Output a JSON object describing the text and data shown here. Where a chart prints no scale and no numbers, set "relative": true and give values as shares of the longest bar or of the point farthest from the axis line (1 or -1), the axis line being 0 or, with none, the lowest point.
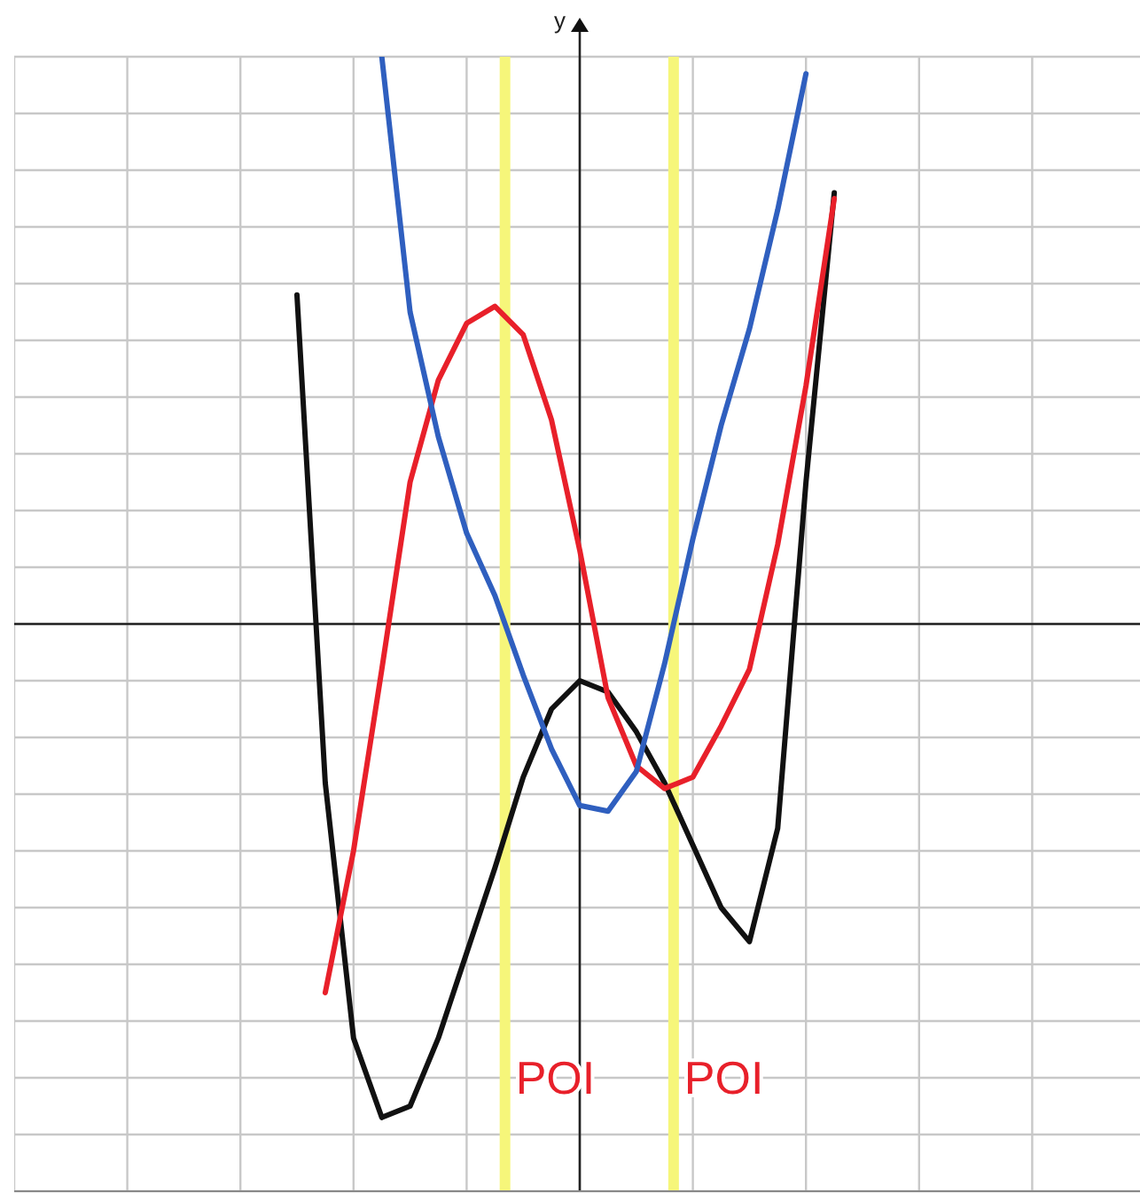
{
  "chart_data": {
    "type": "line",
    "ylabel": "y",
    "relative": true,
    "grid": true,
    "marker": "none",
    "line_style": "solid",
    "categories": [
      null,
      null,
      null,
      null,
      null,
      null,
      null,
      null,
      null,
      null,
      null,
      null,
      null,
      null,
      null,
      null,
      null,
      null,
      null,
      null,
      null,
      null,
      null,
      null,
      null,
      null,
      null,
      null,
      null,
      null,
      null,
      null,
      null,
      null,
      null,
      null,
      null,
      null,
      null,
      null,
      null
    ],
    "series": [
      {
        "color": "#111111",
        "values": [
          null,
          null,
          null,
          null,
          null,
          null,
          null,
          null,
          null,
          null,
          0.58,
          -0.28,
          -0.73,
          -0.87,
          -0.85,
          -0.73,
          -0.58,
          -0.43,
          -0.27,
          -0.15,
          -0.1,
          -0.12,
          -0.19,
          -0.28,
          -0.39,
          -0.5,
          -0.56,
          -0.36,
          0.25,
          0.76,
          null,
          null,
          null,
          null,
          null,
          null,
          null,
          null,
          null,
          null,
          null
        ]
      },
      {
        "color": "#e8202a",
        "values": [
          null,
          null,
          null,
          null,
          null,
          null,
          null,
          null,
          null,
          null,
          null,
          -0.65,
          -0.4,
          -0.08,
          0.25,
          0.43,
          0.53,
          0.56,
          0.51,
          0.36,
          0.13,
          -0.13,
          -0.25,
          -0.29,
          -0.27,
          -0.18,
          -0.08,
          0.14,
          0.42,
          0.75,
          null,
          null,
          null,
          null,
          null,
          null,
          null,
          null,
          null,
          null,
          null
        ]
      },
      {
        "color": "#2f5fbf",
        "values": [
          null,
          null,
          null,
          null,
          null,
          null,
          null,
          null,
          null,
          null,
          null,
          null,
          null,
          1,
          0.55,
          0.33,
          0.16,
          0.05,
          -0.09,
          -0.22,
          -0.32,
          -0.33,
          -0.26,
          -0.07,
          0.15,
          0.35,
          0.52,
          0.73,
          0.97,
          null,
          null,
          null,
          null,
          null,
          null,
          null,
          null,
          null,
          null,
          null,
          null
        ]
      }
    ],
    "annotations": [
      "POI",
      "POI"
    ]
  }
}
